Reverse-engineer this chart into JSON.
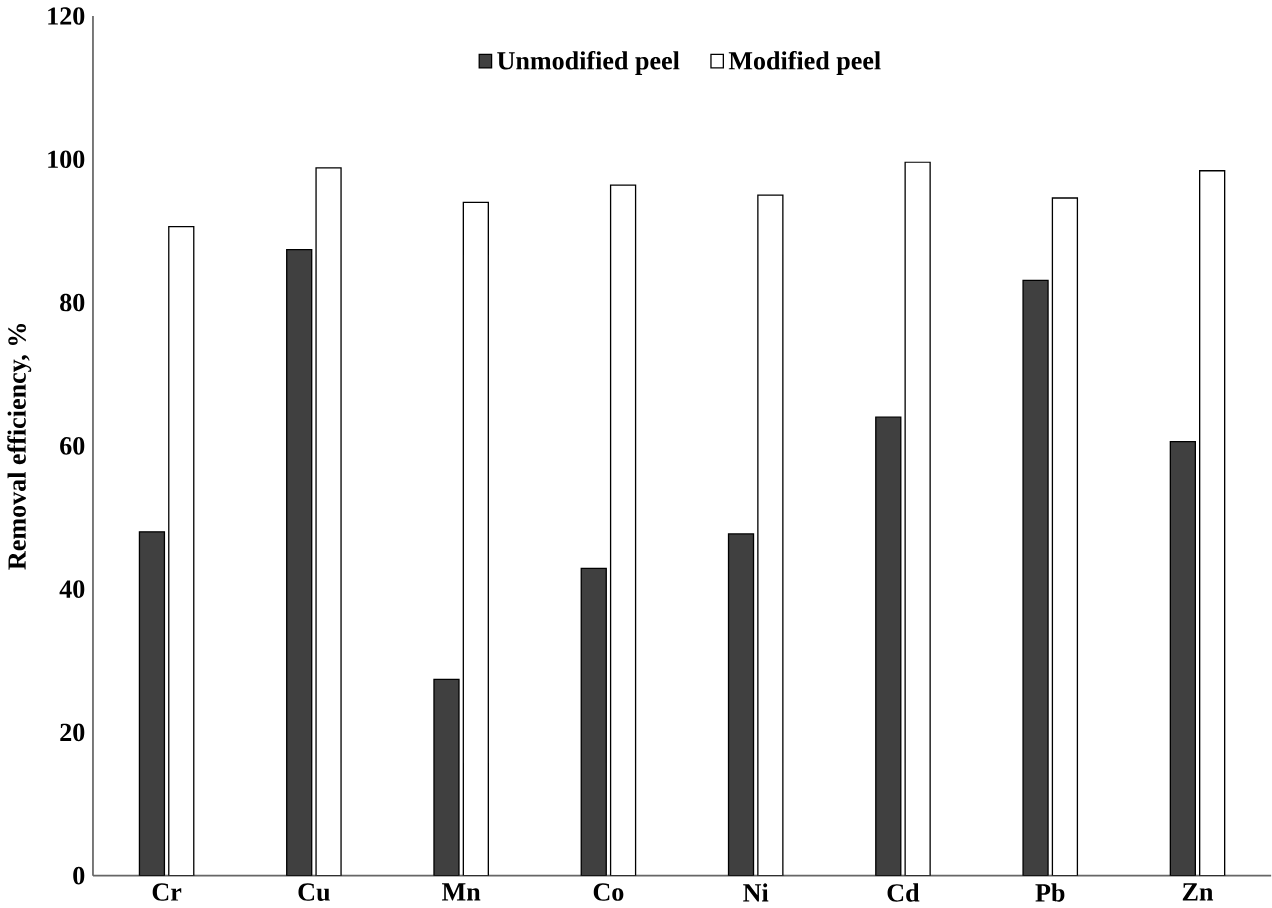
{
  "chart_data": {
    "type": "bar",
    "ylabel": "Removal efficiency, %",
    "categories": [
      "Cr",
      "Cu",
      "Mn",
      "Co",
      "Ni",
      "Cd",
      "Pb",
      "Zn"
    ],
    "series": [
      {
        "name": "Unmodified peel",
        "color": "#404040",
        "values": [
          48,
          87.4,
          27.4,
          42.9,
          47.7,
          64,
          83.1,
          60.6
        ]
      },
      {
        "name": "Modified peel",
        "color": "#ffffff",
        "values": [
          90.6,
          98.8,
          94,
          96.4,
          95,
          99.6,
          94.6,
          98.4
        ]
      }
    ],
    "ylim": [
      0,
      120
    ],
    "yticks": [
      0,
      20,
      40,
      60,
      80,
      100,
      120
    ],
    "grid": false,
    "legend": "top"
  }
}
